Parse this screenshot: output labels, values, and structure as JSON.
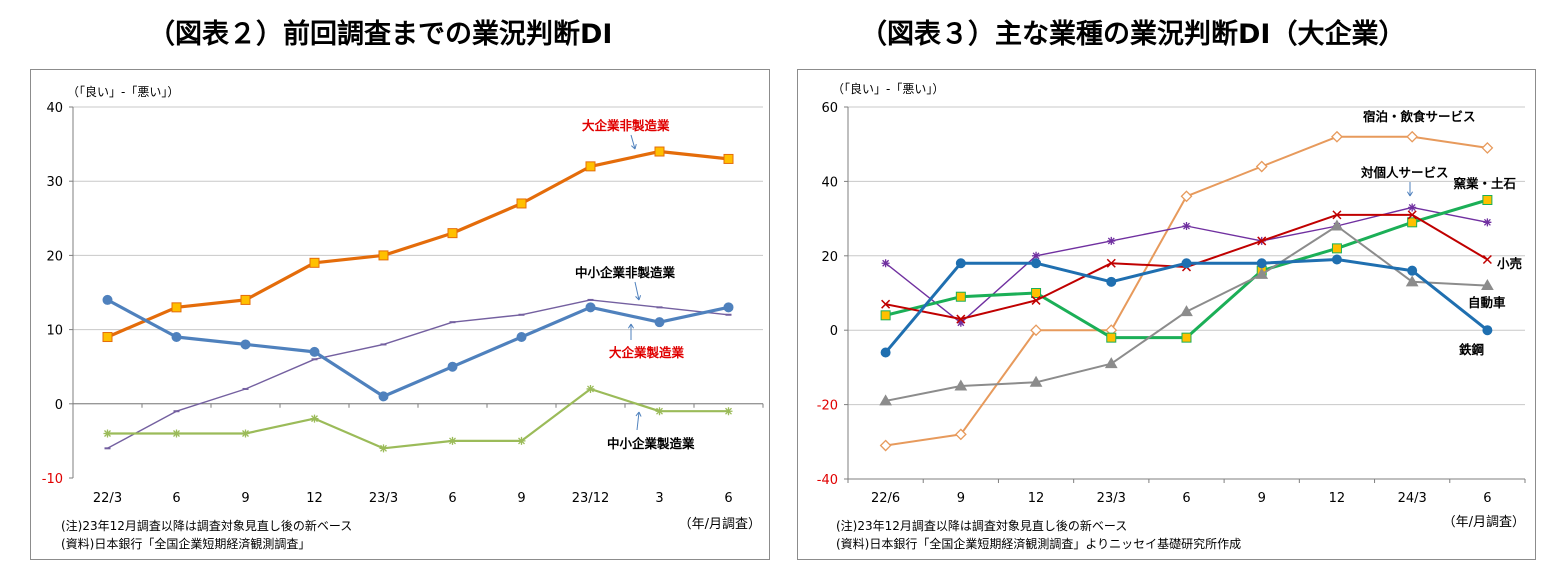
{
  "figures": [
    {
      "title": "（図表２）前回調査までの業況判断DI",
      "chart_data": {
        "type": "line",
        "ylabel": "（「良い」-「悪い」）",
        "xlabel": "（年/月調査）",
        "ylim": [
          -10,
          40
        ],
        "yticks": [
          -10,
          0,
          10,
          20,
          30,
          40
        ],
        "categories": [
          "22/3",
          "6",
          "9",
          "12",
          "23/3",
          "6",
          "9",
          "23/12",
          "3",
          "6"
        ],
        "grid": true,
        "series": [
          {
            "name": "大企業非製造業",
            "values": [
              9,
              13,
              14,
              19,
              20,
              23,
              27,
              32,
              34,
              33
            ],
            "color": "#E46C0A",
            "marker": "square",
            "width": 3.2,
            "label_color": "#E00000"
          },
          {
            "name": "中小企業非製造業",
            "values": [
              -6,
              -1,
              2,
              6,
              8,
              11,
              12,
              14,
              13,
              12
            ],
            "color": "#7460A0",
            "marker": "dash",
            "width": 1.4,
            "label_color": "#000000"
          },
          {
            "name": "大企業製造業",
            "values": [
              14,
              9,
              8,
              7,
              1,
              5,
              9,
              13,
              11,
              13
            ],
            "color": "#4F81BD",
            "marker": "circle",
            "width": 3.2,
            "label_color": "#E00000"
          },
          {
            "name": "中小企業製造業",
            "values": [
              -4,
              -4,
              -4,
              -2,
              -6,
              -5,
              -5,
              2,
              -1,
              -1
            ],
            "color": "#9BBB59",
            "marker": "star",
            "width": 2.2,
            "label_color": "#000000"
          }
        ],
        "notes": [
          "(注)23年12月調査以降は調査対象見直し後の新ベース",
          "(資料)日本銀行「全国企業短期経済観測調査」"
        ]
      }
    },
    {
      "title": "（図表３）主な業種の業況判断DI（大企業）",
      "chart_data": {
        "type": "line",
        "ylabel": "（「良い」-「悪い」）",
        "xlabel": "（年/月調査）",
        "ylim": [
          -40,
          60
        ],
        "yticks": [
          -40,
          -20,
          0,
          20,
          40,
          60
        ],
        "categories": [
          "22/6",
          "9",
          "12",
          "23/3",
          "6",
          "9",
          "12",
          "24/3",
          "6"
        ],
        "grid": true,
        "series": [
          {
            "name": "宿泊・飲食サービス",
            "values": [
              -31,
              -28,
              0,
              0,
              36,
              44,
              52,
              52,
              49
            ],
            "color": "#E79A5C",
            "marker": "diamond",
            "width": 2
          },
          {
            "name": "対個人サービス",
            "values": [
              18,
              2,
              20,
              24,
              28,
              24,
              28,
              33,
              29
            ],
            "color": "#7030A0",
            "marker": "star",
            "width": 1.4
          },
          {
            "name": "窯業・土石",
            "values": [
              4,
              9,
              10,
              -2,
              -2,
              16,
              22,
              29,
              35
            ],
            "color": "#1BAF57",
            "marker": "square",
            "width": 3
          },
          {
            "name": "小売",
            "values": [
              7,
              3,
              8,
              18,
              17,
              24,
              31,
              31,
              19
            ],
            "color": "#C00000",
            "marker": "x",
            "width": 2
          },
          {
            "name": "自動車",
            "values": [
              -19,
              -15,
              -14,
              -9,
              5,
              15,
              28,
              13,
              12
            ],
            "color": "#8C8C8C",
            "marker": "triangle",
            "width": 2
          },
          {
            "name": "鉄鋼",
            "values": [
              -6,
              18,
              18,
              13,
              18,
              18,
              19,
              16,
              0
            ],
            "color": "#1F6FB0",
            "marker": "circle",
            "width": 3
          }
        ],
        "notes": [
          "(注)23年12月調査以降は調査対象見直し後の新ベース",
          "(資料)日本銀行「全国企業短期経済観測調査」よりニッセイ基礎研究所作成"
        ]
      }
    }
  ]
}
